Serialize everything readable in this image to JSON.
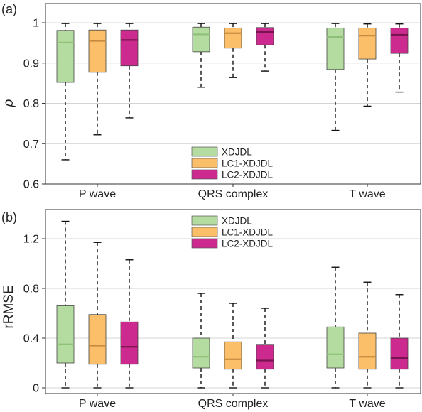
{
  "chart_data": [
    {
      "type": "box",
      "panel_label": "(a)",
      "ylabel": "ρ",
      "ylim": [
        0.6,
        1.0
      ],
      "yticks": [
        0.6,
        0.7,
        0.8,
        0.9,
        1
      ],
      "ytick_labels": [
        "0.6",
        "0.7",
        "0.8",
        "0.9",
        "1"
      ],
      "grid": true,
      "legend_position": "bottom-center",
      "categories": [
        "P wave",
        "QRS complex",
        "T wave"
      ],
      "series": [
        {
          "name": "XDJDL",
          "color": "#b5dca0",
          "median_color": "#8fc07a",
          "boxes": [
            {
              "whislo": 0.66,
              "q1": 0.852,
              "med": 0.951,
              "q3": 0.981,
              "whishi": 0.998
            },
            {
              "whislo": 0.84,
              "q1": 0.928,
              "med": 0.971,
              "q3": 0.989,
              "whishi": 0.998
            },
            {
              "whislo": 0.733,
              "q1": 0.884,
              "med": 0.965,
              "q3": 0.987,
              "whishi": 0.998
            }
          ]
        },
        {
          "name": "LC1-XDJDL",
          "color": "#fbbf6a",
          "median_color": "#c78a3e",
          "boxes": [
            {
              "whislo": 0.722,
              "q1": 0.877,
              "med": 0.955,
              "q3": 0.982,
              "whishi": 0.998
            },
            {
              "whislo": 0.864,
              "q1": 0.937,
              "med": 0.974,
              "q3": 0.987,
              "whishi": 0.998
            },
            {
              "whislo": 0.793,
              "q1": 0.91,
              "med": 0.968,
              "q3": 0.987,
              "whishi": 0.997
            }
          ]
        },
        {
          "name": "LC2-XDJDL",
          "color": "#cc2a8e",
          "median_color": "#7a1450",
          "boxes": [
            {
              "whislo": 0.764,
              "q1": 0.893,
              "med": 0.957,
              "q3": 0.982,
              "whishi": 0.998
            },
            {
              "whislo": 0.88,
              "q1": 0.945,
              "med": 0.977,
              "q3": 0.988,
              "whishi": 0.998
            },
            {
              "whislo": 0.828,
              "q1": 0.924,
              "med": 0.97,
              "q3": 0.987,
              "whishi": 0.997
            }
          ]
        }
      ]
    },
    {
      "type": "box",
      "panel_label": "(b)",
      "ylabel": "rRMSE",
      "ylim": [
        0,
        1.4
      ],
      "yticks": [
        0,
        0.4,
        0.8,
        1.2
      ],
      "ytick_labels": [
        "0",
        "0.4",
        "0.8",
        "1.2"
      ],
      "grid": true,
      "legend_position": "top-center",
      "categories": [
        "P wave",
        "QRS complex",
        "T wave"
      ],
      "series": [
        {
          "name": "XDJDL",
          "color": "#b5dca0",
          "median_color": "#8fc07a",
          "boxes": [
            {
              "whislo": 0.0,
              "q1": 0.2,
              "med": 0.35,
              "q3": 0.66,
              "whishi": 1.34
            },
            {
              "whislo": 0.0,
              "q1": 0.16,
              "med": 0.25,
              "q3": 0.4,
              "whishi": 0.76
            },
            {
              "whislo": 0.0,
              "q1": 0.16,
              "med": 0.27,
              "q3": 0.49,
              "whishi": 0.97
            }
          ]
        },
        {
          "name": "LC1-XDJDL",
          "color": "#fbbf6a",
          "median_color": "#c78a3e",
          "boxes": [
            {
              "whislo": 0.0,
              "q1": 0.19,
              "med": 0.34,
              "q3": 0.59,
              "whishi": 1.17
            },
            {
              "whislo": 0.0,
              "q1": 0.15,
              "med": 0.23,
              "q3": 0.37,
              "whishi": 0.68
            },
            {
              "whislo": 0.0,
              "q1": 0.15,
              "med": 0.25,
              "q3": 0.44,
              "whishi": 0.85
            }
          ]
        },
        {
          "name": "LC2-XDJDL",
          "color": "#cc2a8e",
          "median_color": "#7a1450",
          "boxes": [
            {
              "whislo": 0.0,
              "q1": 0.19,
              "med": 0.33,
              "q3": 0.53,
              "whishi": 1.03
            },
            {
              "whislo": 0.0,
              "q1": 0.15,
              "med": 0.22,
              "q3": 0.35,
              "whishi": 0.64
            },
            {
              "whislo": 0.0,
              "q1": 0.15,
              "med": 0.24,
              "q3": 0.4,
              "whishi": 0.75
            }
          ]
        }
      ]
    }
  ]
}
